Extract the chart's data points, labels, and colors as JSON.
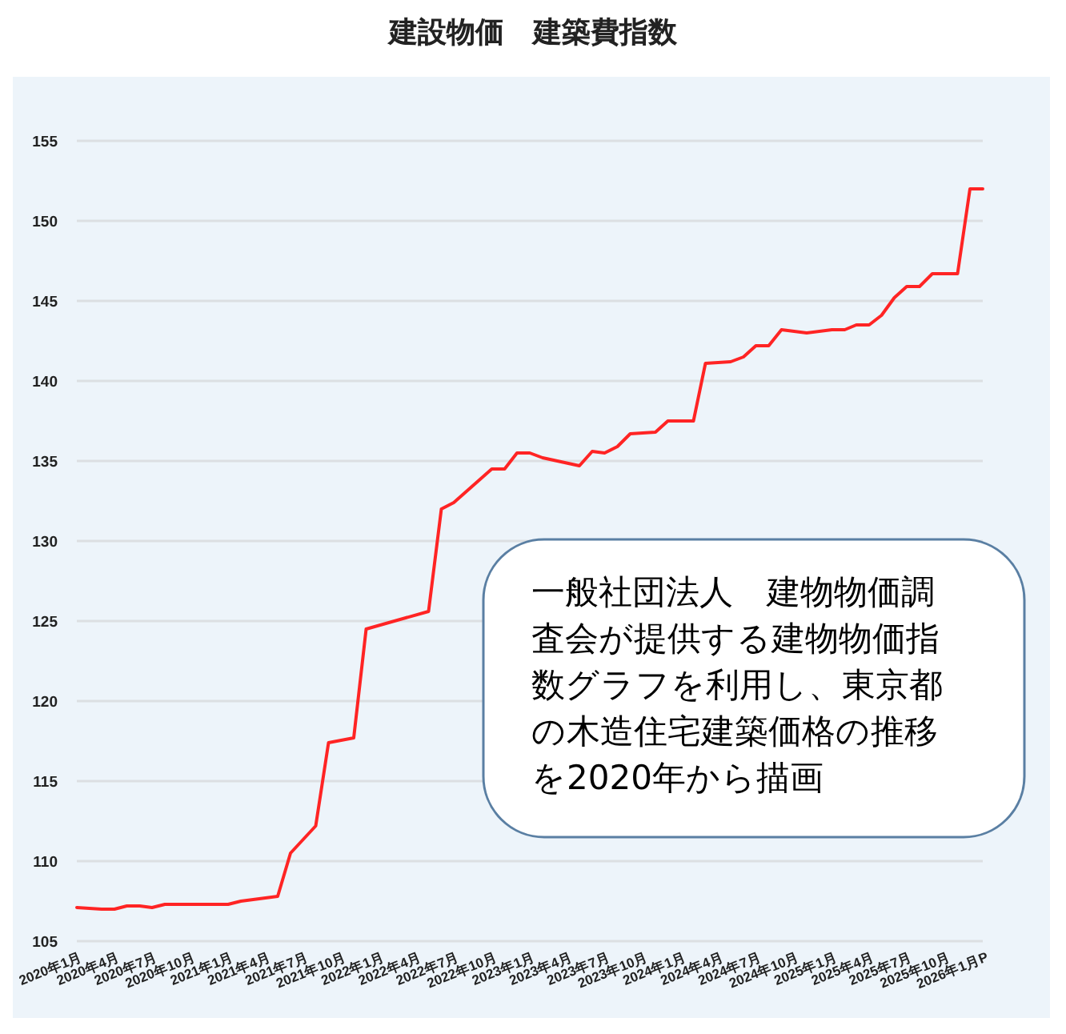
{
  "chart_data": {
    "type": "line",
    "title": "建設物価　建築費指数",
    "x": [
      "2020-01",
      "2020-03",
      "2020-04",
      "2020-05",
      "2020-06",
      "2020-07",
      "2020-08",
      "2020-09",
      "2021-01",
      "2021-02",
      "2021-05",
      "2021-06",
      "2021-08",
      "2021-09",
      "2021-11",
      "2021-12",
      "2022-05",
      "2022-06",
      "2022-07",
      "2022-10",
      "2022-11",
      "2022-12",
      "2023-01",
      "2023-02",
      "2023-05",
      "2023-06",
      "2023-07",
      "2023-08",
      "2023-09",
      "2023-11",
      "2023-12",
      "2024-02",
      "2024-03",
      "2024-05",
      "2024-06",
      "2024-07",
      "2024-08",
      "2024-09",
      "2024-11",
      "2025-01",
      "2025-02",
      "2025-03",
      "2025-04",
      "2025-05",
      "2025-06",
      "2025-07",
      "2025-08",
      "2025-09",
      "2025-11",
      "2025-12",
      "2026-01"
    ],
    "series": [
      {
        "color": "#ff2424",
        "values": [
          107.1,
          107.0,
          107.0,
          107.2,
          107.2,
          107.1,
          107.3,
          107.3,
          107.3,
          107.5,
          107.8,
          110.5,
          112.2,
          117.4,
          117.7,
          124.5,
          125.6,
          132.0,
          132.4,
          134.5,
          134.5,
          135.5,
          135.5,
          135.2,
          134.7,
          135.6,
          135.5,
          135.9,
          136.7,
          136.8,
          137.5,
          137.5,
          141.1,
          141.2,
          141.5,
          142.2,
          142.2,
          143.2,
          143.0,
          143.2,
          143.2,
          143.5,
          143.5,
          144.1,
          145.2,
          145.9,
          145.9,
          146.7,
          146.7,
          152.0,
          152.0
        ]
      }
    ],
    "xlim": [
      "2020-01",
      "2026-01"
    ],
    "xticks": [
      {
        "value": "2020-01",
        "label": "2020年1月"
      },
      {
        "value": "2020-04",
        "label": "2020年4月"
      },
      {
        "value": "2020-07",
        "label": "2020年7月"
      },
      {
        "value": "2020-10",
        "label": "2020年10月"
      },
      {
        "value": "2021-01",
        "label": "2021年1月"
      },
      {
        "value": "2021-04",
        "label": "2021年4月"
      },
      {
        "value": "2021-07",
        "label": "2021年7月"
      },
      {
        "value": "2021-10",
        "label": "2021年10月"
      },
      {
        "value": "2022-01",
        "label": "2022年1月"
      },
      {
        "value": "2022-04",
        "label": "2022年4月"
      },
      {
        "value": "2022-07",
        "label": "2022年7月"
      },
      {
        "value": "2022-10",
        "label": "2022年10月"
      },
      {
        "value": "2023-01",
        "label": "2023年1月"
      },
      {
        "value": "2023-04",
        "label": "2023年4月"
      },
      {
        "value": "2023-07",
        "label": "2023年7月"
      },
      {
        "value": "2023-10",
        "label": "2023年10月"
      },
      {
        "value": "2024-01",
        "label": "2024年1月"
      },
      {
        "value": "2024-04",
        "label": "2024年4月"
      },
      {
        "value": "2024-07",
        "label": "2024年7月"
      },
      {
        "value": "2024-10",
        "label": "2024年10月"
      },
      {
        "value": "2025-01",
        "label": "2025年1月"
      },
      {
        "value": "2025-04",
        "label": "2025年4月"
      },
      {
        "value": "2025-07",
        "label": "2025年7月"
      },
      {
        "value": "2025-10",
        "label": "2025年10月"
      },
      {
        "value": "2026-01",
        "label": "2026年1月P"
      }
    ],
    "ylim": [
      105,
      155
    ],
    "yticks": [
      105,
      110,
      115,
      120,
      125,
      130,
      135,
      140,
      145,
      150,
      155
    ],
    "grid": "y",
    "marker": "none",
    "line_style": "solid",
    "annotations": [
      "一般社団法人　建物物価調査会が提供する建物物価指数グラフを利用し、東京都の木造住宅建築価格の推移を2020年から描画"
    ]
  }
}
